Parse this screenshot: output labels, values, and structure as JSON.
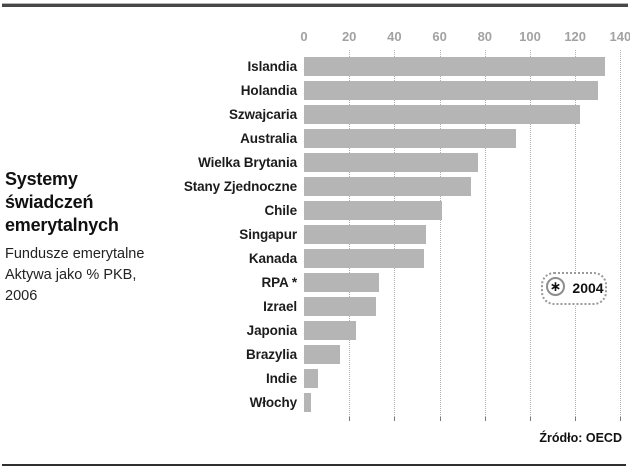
{
  "page": {
    "title_lines": [
      "Systemy",
      "świadczeń",
      "emerytalnych"
    ],
    "subtitle_lines": [
      "Fundusze emerytalne",
      "Aktywa jako % PKB,",
      "2006"
    ],
    "source": "Źródło: OECD"
  },
  "legend": {
    "marker": "∗",
    "label": "2004"
  },
  "colors": {
    "bar": "#b5b5b5",
    "axis_text": "#a2a2a2",
    "gridline": "#b1b1b1",
    "rule": "#474747"
  },
  "chart_data": {
    "type": "bar",
    "orientation": "horizontal",
    "title": "Systemy świadczeń emerytalnych",
    "subtitle": "Fundusze emerytalne Aktywa jako % PKB, 2006",
    "categories": [
      "Islandia",
      "Holandia",
      "Szwajcaria",
      "Australia",
      "Wielka Brytania",
      "Stany Zjednoczne",
      "Chile",
      "Singapur",
      "Kanada",
      "RPA *",
      "Izrael",
      "Japonia",
      "Brazylia",
      "Indie",
      "Włochy"
    ],
    "values": [
      133,
      130,
      122,
      94,
      77,
      74,
      61,
      54,
      53,
      33,
      32,
      23,
      16,
      6,
      3
    ],
    "x_ticks": [
      0,
      20,
      40,
      60,
      80,
      100,
      120,
      140
    ],
    "xlim": [
      0,
      140
    ],
    "xlabel": "",
    "ylabel": "",
    "grid": "dotted-vertical",
    "legend_note": "2004",
    "source": "Źródło: OECD"
  }
}
